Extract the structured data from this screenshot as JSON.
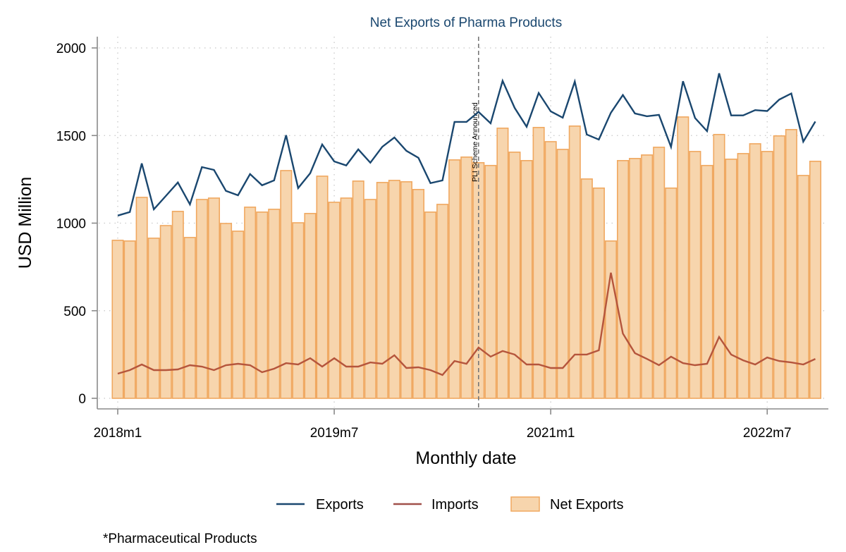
{
  "chart_data": {
    "type": "bar",
    "title": "Net Exports of Pharma Products",
    "xlabel": "Monthly date",
    "ylabel": "USD Million",
    "ylim": [
      0,
      2000
    ],
    "yticks": [
      0,
      500,
      1000,
      1500,
      2000
    ],
    "ytick_labels": [
      "0",
      "500",
      "1000",
      "1500",
      "2000"
    ],
    "xtick_labels": [
      "2018m1",
      "2019m7",
      "2021m1",
      "2022m7"
    ],
    "xtick_indices": [
      0,
      18,
      36,
      54
    ],
    "grid": true,
    "legend_position": "bottom",
    "categories": [
      "2018m1",
      "2018m2",
      "2018m3",
      "2018m4",
      "2018m5",
      "2018m6",
      "2018m7",
      "2018m8",
      "2018m9",
      "2018m10",
      "2018m11",
      "2018m12",
      "2019m1",
      "2019m2",
      "2019m3",
      "2019m4",
      "2019m5",
      "2019m6",
      "2019m7",
      "2019m8",
      "2019m9",
      "2019m10",
      "2019m11",
      "2019m12",
      "2020m1",
      "2020m2",
      "2020m3",
      "2020m4",
      "2020m5",
      "2020m6",
      "2020m7",
      "2020m8",
      "2020m9",
      "2020m10",
      "2020m11",
      "2020m12",
      "2021m1",
      "2021m2",
      "2021m3",
      "2021m4",
      "2021m5",
      "2021m6",
      "2021m7",
      "2021m8",
      "2021m9",
      "2021m10",
      "2021m11",
      "2021m12",
      "2022m1",
      "2022m2",
      "2022m3",
      "2022m4",
      "2022m5",
      "2022m6",
      "2022m7",
      "2022m8",
      "2022m9",
      "2022m10",
      "2022m11"
    ],
    "series": [
      {
        "name": "Exports",
        "kind": "line",
        "color": "#1a476f",
        "values": [
          1043,
          1063,
          1341,
          1079,
          1155,
          1232,
          1107,
          1320,
          1304,
          1184,
          1159,
          1280,
          1216,
          1244,
          1502,
          1200,
          1285,
          1449,
          1352,
          1329,
          1421,
          1345,
          1436,
          1489,
          1413,
          1373,
          1228,
          1244,
          1578,
          1578,
          1635,
          1570,
          1812,
          1658,
          1550,
          1743,
          1638,
          1602,
          1808,
          1506,
          1477,
          1630,
          1731,
          1626,
          1610,
          1618,
          1435,
          1810,
          1600,
          1525,
          1855,
          1615,
          1615,
          1645,
          1640,
          1705,
          1740,
          1465,
          1580
        ]
      },
      {
        "name": "Imports",
        "kind": "line",
        "color": "#b5553c",
        "values": [
          141,
          161,
          193,
          161,
          161,
          165,
          189,
          181,
          161,
          189,
          197,
          189,
          149,
          169,
          201,
          193,
          229,
          181,
          229,
          181,
          181,
          205,
          197,
          246,
          173,
          177,
          161,
          133,
          213,
          197,
          290,
          238,
          270,
          250,
          193,
          193,
          173,
          173,
          250,
          250,
          274,
          717,
          370,
          258,
          225,
          189,
          238,
          201,
          189,
          197,
          350,
          250,
          217,
          193,
          233,
          213,
          205,
          193,
          225
        ]
      },
      {
        "name": "Net Exports",
        "kind": "bar",
        "color": "#f7d5ad",
        "edge_color": "#f0a860",
        "values": [
          902,
          898,
          1147,
          914,
          986,
          1067,
          918,
          1135,
          1143,
          998,
          954,
          1091,
          1063,
          1079,
          1300,
          1002,
          1055,
          1268,
          1119,
          1143,
          1240,
          1135,
          1232,
          1244,
          1236,
          1192,
          1063,
          1107,
          1361,
          1377,
          1345,
          1329,
          1542,
          1405,
          1357,
          1546,
          1465,
          1421,
          1554,
          1252,
          1200,
          898,
          1357,
          1369,
          1389,
          1433,
          1200,
          1606,
          1409,
          1329,
          1506,
          1365,
          1397,
          1453,
          1409,
          1498,
          1534,
          1272,
          1353
        ]
      }
    ],
    "annotations": [
      {
        "text": "PLI Scheme Announced",
        "x_category": "2020m7",
        "style": "dashed-vertical-line"
      }
    ],
    "note": "*Pharmaceutical Products"
  }
}
